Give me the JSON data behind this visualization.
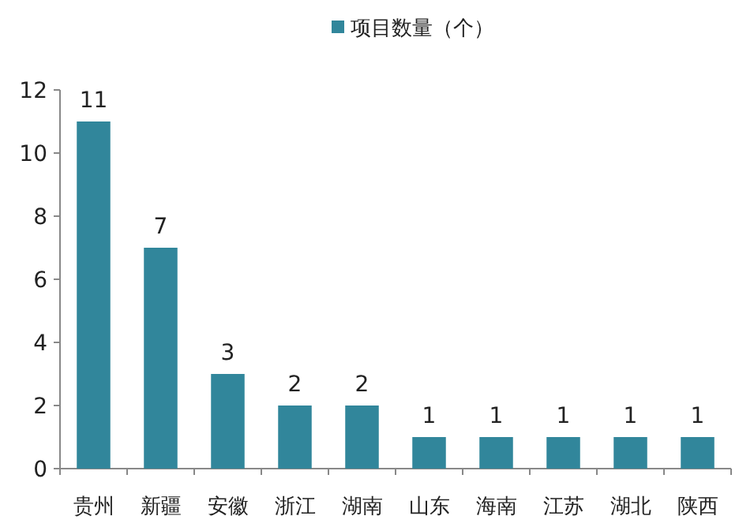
{
  "chart_data": {
    "type": "bar",
    "categories": [
      "贵州",
      "新疆",
      "安徽",
      "浙江",
      "湖南",
      "山东",
      "海南",
      "江苏",
      "湖北",
      "陕西"
    ],
    "series": [
      {
        "name": "项目数量（个）",
        "color": "#31869b",
        "values": [
          11,
          7,
          3,
          2,
          2,
          1,
          1,
          1,
          1,
          1
        ]
      }
    ],
    "ylim": [
      0,
      12
    ],
    "yticks": [
      0,
      2,
      4,
      6,
      8,
      10,
      12
    ],
    "data_labels": true,
    "legend": "top",
    "grid": false
  }
}
